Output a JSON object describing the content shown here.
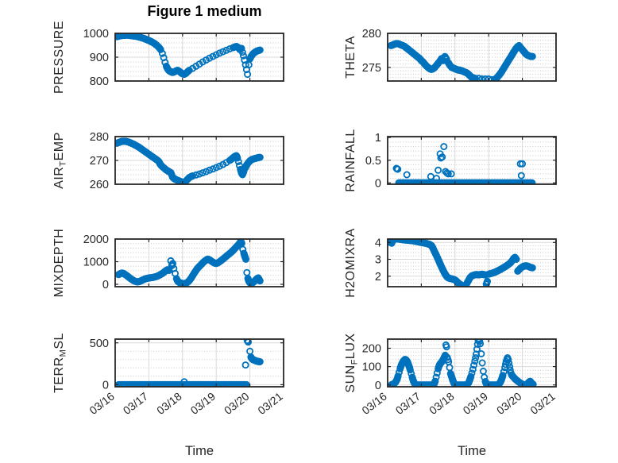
{
  "title": "Figure 1 medium",
  "axis": {
    "xtick_labels": [
      "03/16",
      "03/17",
      "03/18",
      "03/19",
      "03/20",
      "03/21"
    ],
    "xlabel": "Time",
    "marker_color": "#0072BD",
    "grid_color": "#d9d9d9",
    "minor_grid_color": "#c9c9c9",
    "axes_color": "#262626",
    "text_color": "#262626"
  },
  "chart_data": [
    {
      "name": "PRESSURE",
      "type": "scatter",
      "ylabel_parts": [
        {
          "t": "PRESSURE"
        }
      ],
      "yticks": [
        800,
        900,
        1000
      ],
      "ylim": [
        800,
        1000
      ],
      "yminor": 20,
      "xlim": [
        0,
        5
      ],
      "xticks": [
        0,
        1,
        2,
        3,
        4,
        5
      ],
      "xlabel": "Time",
      "x": [
        0.05,
        0.1,
        0.15,
        0.2,
        0.25,
        0.3,
        0.35,
        0.4,
        0.45,
        0.5,
        0.55,
        0.6,
        0.65,
        0.7,
        0.75,
        0.8,
        0.85,
        0.9,
        0.95,
        1,
        1.05,
        1.1,
        1.15,
        1.2,
        1.25,
        1.3,
        1.35,
        1.4,
        1.44,
        1.48,
        1.52,
        1.56,
        1.6,
        1.65,
        1.7,
        1.75,
        1.8,
        1.85,
        1.9,
        1.95,
        2,
        2.05,
        2.1,
        2.15,
        2.2,
        2.3,
        2.4,
        2.5,
        2.6,
        2.7,
        2.8,
        2.9,
        3,
        3.1,
        3.2,
        3.3,
        3.4,
        3.5,
        3.55,
        3.6,
        3.65,
        3.7,
        3.75,
        3.78,
        3.81,
        3.84,
        3.87,
        3.9,
        3.93,
        3.97,
        4,
        4.05,
        4.1,
        4.15,
        4.2,
        4.25,
        4.3
      ],
      "y": [
        986,
        988,
        990,
        991,
        992,
        992,
        993,
        992,
        991,
        990,
        989,
        988,
        987,
        985,
        983,
        981,
        979,
        976,
        973,
        970,
        967,
        963,
        959,
        954,
        948,
        941,
        932,
        916,
        898,
        878,
        862,
        850,
        843,
        839,
        836,
        838,
        842,
        845,
        841,
        835,
        830,
        828,
        832,
        839,
        845,
        853,
        862,
        871,
        880,
        888,
        896,
        903,
        910,
        917,
        923,
        929,
        935,
        940,
        943,
        945,
        941,
        932,
        937,
        921,
        906,
        888,
        868,
        848,
        828,
        868,
        893,
        906,
        915,
        921,
        925,
        928,
        930
      ]
    },
    {
      "name": "THETA",
      "type": "scatter",
      "ylabel_parts": [
        {
          "t": "THETA"
        }
      ],
      "yticks": [
        275,
        280
      ],
      "ylim": [
        273,
        280
      ],
      "yminor": 0.5,
      "xlim": [
        0,
        5
      ],
      "xticks": [
        0,
        1,
        2,
        3,
        4,
        5
      ],
      "xlabel": "Time",
      "x": [
        0.1,
        0.15,
        0.2,
        0.25,
        0.3,
        0.35,
        0.4,
        0.45,
        0.5,
        0.55,
        0.6,
        0.65,
        0.7,
        0.75,
        0.8,
        0.85,
        0.9,
        0.95,
        1,
        1.05,
        1.1,
        1.15,
        1.2,
        1.25,
        1.3,
        1.35,
        1.4,
        1.45,
        1.5,
        1.55,
        1.6,
        1.65,
        1.7,
        1.75,
        1.8,
        1.85,
        1.9,
        1.95,
        2,
        2.05,
        2.1,
        2.15,
        2.2,
        2.25,
        2.3,
        2.35,
        2.4,
        2.44,
        2.48,
        2.52,
        2.6,
        2.7,
        2.8,
        2.9,
        3,
        3.1,
        3.2,
        3.25,
        3.3,
        3.35,
        3.4,
        3.45,
        3.5,
        3.55,
        3.6,
        3.65,
        3.7,
        3.75,
        3.8,
        3.85,
        3.9,
        3.95,
        4,
        4.05,
        4.1,
        4.15,
        4.2,
        4.25,
        4.3
      ],
      "y": [
        278.2,
        278.3,
        278.4,
        278.5,
        278.5,
        278.4,
        278.3,
        278.2,
        278.1,
        277.9,
        277.7,
        277.5,
        277.3,
        277.1,
        276.9,
        276.7,
        276.5,
        276.3,
        276,
        275.8,
        275.5,
        275.2,
        275,
        274.8,
        274.7,
        274.8,
        275,
        275.3,
        275.6,
        275.9,
        276.3,
        276,
        276.6,
        276.2,
        275.7,
        275.3,
        275,
        274.9,
        274.8,
        274.7,
        274.6,
        274.6,
        274.5,
        274.4,
        274.3,
        274.2,
        274,
        273.8,
        273.6,
        273.5,
        273.4,
        273.4,
        273.3,
        273.3,
        273.3,
        273.2,
        273.3,
        273.5,
        273.8,
        274.1,
        274.5,
        274.9,
        275.3,
        275.7,
        276.1,
        276.5,
        276.9,
        277.3,
        277.7,
        278,
        278.2,
        277.9,
        277.6,
        277.3,
        277,
        276.8,
        276.7,
        276.6,
        276.6
      ]
    },
    {
      "name": "AIR_TEMP",
      "type": "scatter",
      "ylabel_parts": [
        {
          "t": "AIR"
        },
        {
          "t": "T",
          "sub": true
        },
        {
          "t": "EMP"
        }
      ],
      "yticks": [
        260,
        270,
        280
      ],
      "ylim": [
        260,
        280
      ],
      "yminor": 2,
      "xlim": [
        0,
        5
      ],
      "xticks": [
        0,
        1,
        2,
        3,
        4,
        5
      ],
      "xlabel": "Time",
      "x": [
        0.05,
        0.1,
        0.15,
        0.2,
        0.25,
        0.3,
        0.35,
        0.4,
        0.45,
        0.5,
        0.55,
        0.6,
        0.65,
        0.7,
        0.75,
        0.8,
        0.85,
        0.9,
        0.95,
        1,
        1.05,
        1.1,
        1.15,
        1.2,
        1.25,
        1.3,
        1.33,
        1.36,
        1.4,
        1.45,
        1.5,
        1.55,
        1.6,
        1.65,
        1.68,
        1.7,
        1.73,
        1.77,
        1.8,
        1.85,
        1.9,
        1.95,
        2,
        2.05,
        2.1,
        2.15,
        2.2,
        2.25,
        2.3,
        2.4,
        2.5,
        2.6,
        2.7,
        2.8,
        2.9,
        3,
        3.1,
        3.2,
        3.3,
        3.4,
        3.45,
        3.5,
        3.55,
        3.6,
        3.63,
        3.66,
        3.69,
        3.72,
        3.75,
        3.78,
        3.82,
        3.86,
        3.9,
        3.95,
        4,
        4.05,
        4.1,
        4.15,
        4.2,
        4.25,
        4.3
      ],
      "y": [
        277.2,
        277.5,
        277.8,
        278,
        278,
        278,
        277.9,
        277.7,
        277.4,
        277.1,
        276.8,
        276.4,
        276,
        275.6,
        275.1,
        274.6,
        274.1,
        273.6,
        273.1,
        272.6,
        272.1,
        271.6,
        271.1,
        270.6,
        270.1,
        269.5,
        268.6,
        268,
        267.4,
        266.8,
        266.2,
        265.7,
        265.3,
        264.9,
        263.9,
        263.1,
        262.6,
        262.2,
        262,
        261.7,
        261.4,
        261.1,
        260.8,
        260.7,
        261.3,
        262.1,
        262.8,
        263.2,
        263.5,
        263.9,
        264.3,
        264.8,
        265.3,
        265.9,
        266.4,
        267,
        267.6,
        268.3,
        269.1,
        270,
        270.5,
        271.1,
        271.7,
        272,
        271,
        269.5,
        267.8,
        266.2,
        264.8,
        264,
        265.4,
        266.8,
        268,
        269,
        269.8,
        270.3,
        270.6,
        270.8,
        271,
        271.2,
        271.3
      ]
    },
    {
      "name": "RAINFALL",
      "type": "scatter",
      "ylabel_parts": [
        {
          "t": "RAINFALL"
        }
      ],
      "yticks": [
        0,
        0.5,
        1
      ],
      "ylim": [
        -0.03,
        1.02
      ],
      "yminor": 0.1,
      "xlim": [
        0,
        5
      ],
      "xticks": [
        0,
        1,
        2,
        3,
        4,
        5
      ],
      "xlabel": "Time",
      "x": [
        0.26,
        0.3,
        0.57,
        1.28,
        1.45,
        1.5,
        1.56,
        1.58,
        1.62,
        1.67,
        1.72,
        1.76,
        1.8,
        1.89,
        3.94,
        3.97,
        4
      ],
      "y": [
        0.32,
        0.3,
        0.18,
        0.14,
        0.1,
        0.28,
        0.64,
        0.55,
        0.57,
        0.8,
        0.25,
        0.22,
        0.2,
        0.2,
        0.42,
        0.16,
        0.42
      ],
      "zeros": [
        [
          0.33,
          4.3,
          0.018
        ]
      ]
    },
    {
      "name": "MIXDEPTH",
      "type": "scatter",
      "ylabel_parts": [
        {
          "t": "MIXDEPTH"
        }
      ],
      "yticks": [
        0,
        1000,
        2000
      ],
      "ylim": [
        -105,
        2000
      ],
      "yminor": 200,
      "xlim": [
        0,
        5
      ],
      "xticks": [
        0,
        1,
        2,
        3,
        4,
        5
      ],
      "xlabel": "Time",
      "x": [
        0.1,
        0.15,
        0.2,
        0.25,
        0.3,
        0.35,
        0.4,
        0.45,
        0.5,
        0.55,
        0.6,
        0.65,
        0.7,
        0.75,
        0.8,
        0.85,
        0.9,
        0.95,
        1,
        1.05,
        1.1,
        1.15,
        1.2,
        1.25,
        1.3,
        1.35,
        1.4,
        1.45,
        1.5,
        1.55,
        1.6,
        1.65,
        1.68,
        1.71,
        1.74,
        1.78,
        1.82,
        1.86,
        1.9,
        1.95,
        2,
        2.05,
        2.1,
        2.15,
        2.2,
        2.25,
        2.3,
        2.35,
        2.4,
        2.45,
        2.5,
        2.55,
        2.6,
        2.65,
        2.7,
        2.75,
        2.8,
        2.85,
        2.9,
        2.95,
        3,
        3.05,
        3.1,
        3.15,
        3.2,
        3.25,
        3.3,
        3.35,
        3.4,
        3.45,
        3.5,
        3.55,
        3.6,
        3.65,
        3.7,
        3.73,
        3.76,
        3.79,
        3.82,
        3.85,
        3.88,
        3.91,
        3.94,
        3.97,
        4,
        4.05,
        4.1,
        4.15,
        4.2,
        4.25,
        4.3
      ],
      "y": [
        430,
        470,
        500,
        480,
        430,
        380,
        320,
        260,
        210,
        165,
        130,
        110,
        115,
        140,
        180,
        215,
        245,
        265,
        280,
        290,
        300,
        315,
        335,
        360,
        395,
        435,
        480,
        535,
        595,
        645,
        615,
        1040,
        820,
        920,
        700,
        480,
        250,
        130,
        85,
        55,
        35,
        25,
        45,
        95,
        165,
        260,
        380,
        500,
        615,
        715,
        795,
        865,
        945,
        1015,
        1075,
        1115,
        1085,
        1030,
        980,
        940,
        920,
        950,
        1000,
        1055,
        1115,
        1175,
        1240,
        1300,
        1360,
        1425,
        1495,
        1575,
        1655,
        1735,
        1820,
        1895,
        1810,
        1540,
        1370,
        1230,
        1110,
        520,
        260,
        130,
        65,
        40,
        85,
        160,
        240,
        285,
        150
      ]
    },
    {
      "name": "H2OMIXRA",
      "type": "scatter",
      "ylabel_parts": [
        {
          "t": "H2OMIXRA"
        }
      ],
      "yticks": [
        2,
        3,
        4
      ],
      "ylim": [
        1.38,
        4.2
      ],
      "yminor": 0.2,
      "xlim": [
        0,
        5
      ],
      "xticks": [
        0,
        1,
        2,
        3,
        4,
        5
      ],
      "xlabel": "Time",
      "x": [
        0.08,
        0.1,
        0.12,
        0.15,
        0.2,
        0.25,
        0.3,
        0.35,
        0.4,
        0.45,
        0.5,
        0.55,
        0.6,
        0.65,
        0.7,
        0.75,
        0.8,
        0.85,
        0.9,
        0.95,
        1,
        1.05,
        1.1,
        1.15,
        1.2,
        1.25,
        1.3,
        1.34,
        1.37,
        1.4,
        1.43,
        1.46,
        1.5,
        1.53,
        1.56,
        1.6,
        1.64,
        1.68,
        1.72,
        1.76,
        1.8,
        1.85,
        1.9,
        1.95,
        2,
        2.05,
        2.1,
        2.15,
        2.2,
        2.25,
        2.3,
        2.35,
        2.4,
        2.45,
        2.5,
        2.55,
        2.6,
        2.65,
        2.7,
        2.75,
        2.8,
        2.85,
        2.9,
        2.93,
        2.96,
        3,
        3.05,
        3.1,
        3.15,
        3.2,
        3.25,
        3.3,
        3.35,
        3.4,
        3.45,
        3.5,
        3.55,
        3.6,
        3.65,
        3.7,
        3.74,
        3.78,
        3.82,
        3.86,
        3.9,
        3.95,
        4,
        4.05,
        4.1,
        4.15,
        4.2,
        4.25,
        4.3
      ],
      "y": [
        4,
        4.1,
        3.95,
        4.12,
        4.18,
        4.2,
        4.2,
        4.19,
        4.18,
        4.16,
        4.15,
        4.14,
        4.13,
        4.12,
        4.11,
        4.1,
        4.08,
        4.06,
        4.04,
        4.02,
        4,
        3.98,
        3.96,
        3.94,
        3.91,
        3.88,
        3.82,
        3.68,
        3.55,
        3.42,
        3.3,
        3.17,
        3,
        2.86,
        2.72,
        2.55,
        2.38,
        2.22,
        2.08,
        1.97,
        1.9,
        1.87,
        1.85,
        1.82,
        1.78,
        1.7,
        1.6,
        1.52,
        1.46,
        1.42,
        1.44,
        1.56,
        1.75,
        1.93,
        2.02,
        2.06,
        2.09,
        2.1,
        2.08,
        2.1,
        2.12,
        2.1,
        2.08,
        1.52,
        1.7,
        2.12,
        2.15,
        2.18,
        2.21,
        2.25,
        2.3,
        2.35,
        2.4,
        2.46,
        2.52,
        2.58,
        2.64,
        2.72,
        2.8,
        2.92,
        3.05,
        3.12,
        3,
        2.3,
        2.38,
        2.48,
        2.55,
        2.6,
        2.62,
        2.6,
        2.56,
        2.52,
        2.5
      ]
    },
    {
      "name": "TERR_MSL",
      "type": "scatter",
      "ylabel_parts": [
        {
          "t": "TERR"
        },
        {
          "t": "M",
          "sub": true
        },
        {
          "t": "SL"
        }
      ],
      "yticks": [
        0,
        500
      ],
      "ylim": [
        -25,
        545
      ],
      "yminor": 100,
      "xlim": [
        0,
        5
      ],
      "xticks": [
        0,
        1,
        2,
        3,
        4,
        5
      ],
      "xlabel": "Time",
      "x": [
        2.05,
        3.87,
        3.92,
        3.95,
        4,
        4.03,
        4.06,
        4.09,
        4.12,
        4.15,
        4.18,
        4.21,
        4.24,
        4.27,
        4.3
      ],
      "y": [
        35,
        235,
        530,
        510,
        400,
        330,
        310,
        300,
        295,
        290,
        285,
        281,
        278,
        276,
        274
      ],
      "zeros": [
        [
          0.1,
          3.9,
          0.018
        ]
      ]
    },
    {
      "name": "SUN_FLUX",
      "type": "scatter",
      "ylabel_parts": [
        {
          "t": "SUN"
        },
        {
          "t": "F",
          "sub": true
        },
        {
          "t": "LUX"
        }
      ],
      "yticks": [
        0,
        100,
        200
      ],
      "ylim": [
        -10,
        250
      ],
      "yminor": 20,
      "xlim": [
        0,
        5
      ],
      "xticks": [
        0,
        1,
        2,
        3,
        4,
        5
      ],
      "xlabel": "Time",
      "x": [
        0.12,
        0.16,
        0.2,
        0.24,
        0.28,
        0.31,
        0.34,
        0.37,
        0.4,
        0.43,
        0.46,
        0.49,
        0.52,
        0.55,
        0.58,
        0.61,
        0.64,
        0.67,
        0.7,
        0.73,
        0.76,
        0.79,
        0.82,
        1.38,
        1.41,
        1.44,
        1.47,
        1.5,
        1.53,
        1.56,
        1.6,
        1.63,
        1.66,
        1.69,
        1.71,
        1.73,
        1.75,
        1.77,
        1.79,
        1.81,
        1.84,
        1.87,
        1.9,
        1.93,
        1.96,
        1.99,
        2.38,
        2.41,
        2.44,
        2.47,
        2.5,
        2.53,
        2.56,
        2.59,
        2.61,
        2.63,
        2.65,
        2.67,
        2.69,
        2.71,
        2.73,
        2.75,
        2.78,
        2.81,
        2.84,
        2.87,
        2.9,
        2.93,
        3.3,
        3.33,
        3.36,
        3.39,
        3.42,
        3.45,
        3.48,
        3.5,
        3.52,
        3.54,
        3.56,
        3.58,
        3.6,
        3.62,
        3.64,
        3.66,
        3.68,
        3.71,
        3.74,
        3.77,
        3.8,
        3.84,
        3.88,
        3.92,
        3.96,
        4,
        4.03,
        4.06,
        4.14,
        4.17,
        4.2,
        4.23,
        4.26,
        4.29,
        4.32
      ],
      "y": [
        2,
        4,
        8,
        16,
        30,
        48,
        68,
        88,
        105,
        118,
        128,
        135,
        139,
        136,
        128,
        116,
        100,
        82,
        62,
        42,
        24,
        10,
        3,
        4,
        20,
        42,
        65,
        88,
        105,
        116,
        124,
        132,
        142,
        155,
        162,
        218,
        208,
        150,
        138,
        126,
        95,
        62,
        44,
        28,
        12,
        4,
        5,
        14,
        28,
        45,
        64,
        85,
        108,
        130,
        148,
        168,
        195,
        222,
        242,
        248,
        238,
        225,
        170,
        120,
        75,
        42,
        18,
        6,
        4,
        10,
        20,
        34,
        52,
        72,
        95,
        112,
        128,
        140,
        148,
        138,
        120,
        100,
        82,
        66,
        55,
        48,
        42,
        36,
        30,
        24,
        18,
        13,
        8,
        4,
        2,
        1,
        4,
        10,
        16,
        20,
        14,
        7,
        3
      ],
      "zeros": [
        [
          0.85,
          1.36,
          0.02
        ],
        [
          2.0,
          2.36,
          0.02
        ],
        [
          2.95,
          3.28,
          0.02
        ],
        [
          4.06,
          4.13,
          0.02
        ]
      ]
    }
  ]
}
